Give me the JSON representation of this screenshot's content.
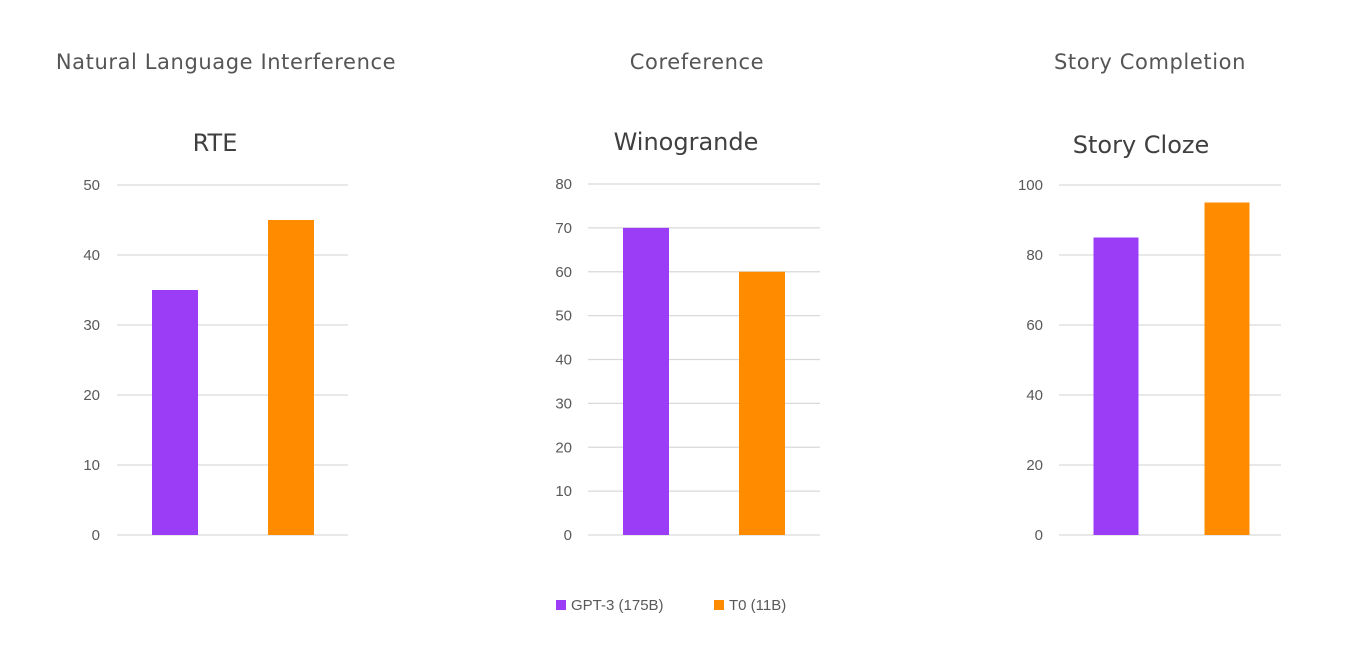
{
  "colors": {
    "gpt3": "#9b3cf7",
    "t0": "#ff8c00"
  },
  "legend": [
    {
      "label": "GPT-3 (175B)",
      "color": "#9b3cf7"
    },
    {
      "label": "T0 (11B)",
      "color": "#ff8c00"
    }
  ],
  "chart_data": [
    {
      "type": "bar",
      "category": "Natural Language Interference",
      "title": "RTE",
      "ylim": [
        0,
        50
      ],
      "yticks": [
        0,
        10,
        20,
        30,
        40,
        50
      ],
      "grid": true,
      "series": [
        {
          "name": "GPT-3 (175B)",
          "values": [
            35
          ]
        },
        {
          "name": "T0 (11B)",
          "values": [
            45
          ]
        }
      ]
    },
    {
      "type": "bar",
      "category": "Coreference",
      "title": "Winogrande",
      "ylim": [
        0,
        80
      ],
      "yticks": [
        0,
        10,
        20,
        30,
        40,
        50,
        60,
        70,
        80
      ],
      "grid": true,
      "series": [
        {
          "name": "GPT-3 (175B)",
          "values": [
            70
          ]
        },
        {
          "name": "T0 (11B)",
          "values": [
            60
          ]
        }
      ]
    },
    {
      "type": "bar",
      "category": "Story Completion",
      "title": "Story Cloze",
      "ylim": [
        0,
        100
      ],
      "yticks": [
        0,
        20,
        40,
        60,
        80,
        100
      ],
      "grid": true,
      "series": [
        {
          "name": "GPT-3 (175B)",
          "values": [
            85
          ]
        },
        {
          "name": "T0 (11B)",
          "values": [
            95
          ]
        }
      ]
    }
  ]
}
